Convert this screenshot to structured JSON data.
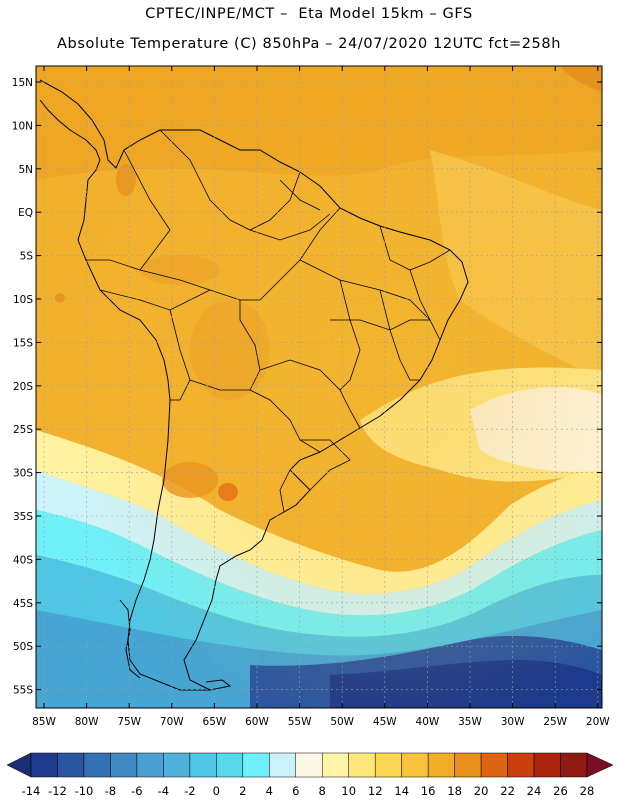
{
  "header": {
    "line1": "CPTEC/INPE/MCT –  Eta Model 15km – GFS",
    "line2": "Absolute Temperature (C) 850hPa – 24/07/2020 12UTC fct=258h"
  },
  "map": {
    "lat_labels": [
      "15N",
      "10N",
      "5N",
      "EQ",
      "5S",
      "10S",
      "15S",
      "20S",
      "25S",
      "30S",
      "35S",
      "40S",
      "45S",
      "50S",
      "55S"
    ],
    "lon_labels": [
      "85W",
      "80W",
      "75W",
      "70W",
      "65W",
      "60W",
      "55W",
      "50W",
      "45W",
      "40W",
      "35W",
      "30W",
      "25W",
      "20W"
    ],
    "region": "South America"
  },
  "colorbar": {
    "labels": [
      "-14",
      "-12",
      "-10",
      "-8",
      "-6",
      "-4",
      "-2",
      "0",
      "2",
      "4",
      "6",
      "8",
      "10",
      "12",
      "14",
      "16",
      "18",
      "20",
      "22",
      "24",
      "26",
      "28"
    ],
    "low_color": "#1a3070",
    "high_color": "#7a0e24",
    "colors": [
      "#1e3a8c",
      "#2a55a0",
      "#3471b4",
      "#3f8ac4",
      "#4aa0d2",
      "#50b2dc",
      "#4fc6e4",
      "#58d8ec",
      "#6ff0fa",
      "#ccf3fb",
      "#fdf7e6",
      "#fff4a8",
      "#ffe67a",
      "#fcd655",
      "#f7c23e",
      "#f2ad29",
      "#e8901c",
      "#dd6410",
      "#c9400e",
      "#aa2410",
      "#8e1a12"
    ]
  }
}
